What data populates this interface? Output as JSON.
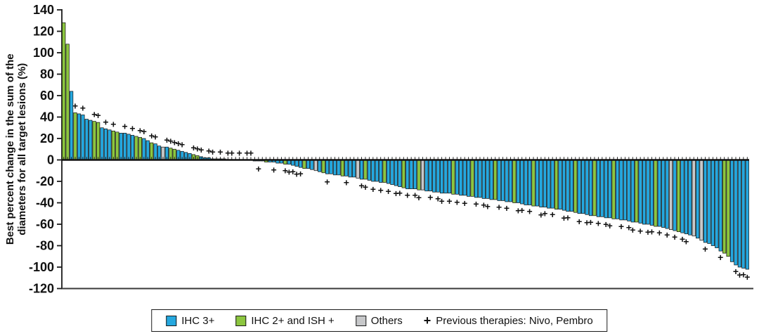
{
  "chart_data": {
    "type": "bar",
    "subtype": "waterfall",
    "title": "",
    "xlabel": "",
    "ylabel": "Best percent change in the sum of the diameters for all target lesions (%)",
    "ylabel_lines": [
      "Best percent change in the sum of the",
      "diameters for all target lesions (%)"
    ],
    "ylim": [
      -120,
      140
    ],
    "ytick_interval": 20,
    "yticks": [
      140,
      120,
      100,
      80,
      60,
      40,
      20,
      0,
      -20,
      -40,
      -60,
      -80,
      -100,
      -120
    ],
    "grid": "off",
    "legend_position": "bottom",
    "legend": [
      {
        "type": "swatch",
        "label": "IHC 3+",
        "color": "#25A8DF"
      },
      {
        "type": "swatch",
        "label": "IHC 2+ and ISH +",
        "color": "#8CC63F"
      },
      {
        "type": "swatch",
        "label": "Others",
        "color": "#C7C8CA"
      },
      {
        "type": "marker",
        "label": "Previous therapies: Nivo, Pembro",
        "marker": "+"
      }
    ],
    "color_key": {
      "b": "#25A8DF",
      "g": "#8CC63F",
      "x": "#C7C8CA"
    },
    "marker_meaning": "Previous therapies: Nivo, Pembro",
    "bar_format": "[best_percent_change, color_code(b=IHC3+,g=IHC2+/ISH+,x=Others), prev_therapy_plus_flag]",
    "bars": [
      [
        128,
        "g",
        0
      ],
      [
        108,
        "g",
        0
      ],
      [
        64,
        "b",
        0
      ],
      [
        44,
        "g",
        1
      ],
      [
        43,
        "b",
        0
      ],
      [
        42,
        "b",
        1
      ],
      [
        38,
        "b",
        0
      ],
      [
        37,
        "b",
        0
      ],
      [
        36,
        "g",
        1
      ],
      [
        35,
        "g",
        1
      ],
      [
        30,
        "b",
        0
      ],
      [
        29,
        "b",
        1
      ],
      [
        28,
        "b",
        0
      ],
      [
        27,
        "g",
        1
      ],
      [
        26,
        "g",
        0
      ],
      [
        25,
        "b",
        0
      ],
      [
        25,
        "b",
        1
      ],
      [
        24,
        "b",
        0
      ],
      [
        23,
        "b",
        1
      ],
      [
        22,
        "g",
        0
      ],
      [
        21,
        "g",
        1
      ],
      [
        20,
        "b",
        1
      ],
      [
        18,
        "b",
        0
      ],
      [
        16,
        "g",
        1
      ],
      [
        15,
        "b",
        1
      ],
      [
        13,
        "b",
        0
      ],
      [
        12,
        "x",
        0
      ],
      [
        12,
        "b",
        1
      ],
      [
        11,
        "g",
        1
      ],
      [
        10,
        "g",
        1
      ],
      [
        9,
        "b",
        1
      ],
      [
        8,
        "b",
        1
      ],
      [
        7,
        "b",
        0
      ],
      [
        6,
        "b",
        0
      ],
      [
        5,
        "g",
        1
      ],
      [
        4,
        "g",
        1
      ],
      [
        3,
        "b",
        1
      ],
      [
        2,
        "b",
        0
      ],
      [
        2,
        "b",
        1
      ],
      [
        1,
        "b",
        1
      ],
      [
        1,
        "g",
        0
      ],
      [
        1,
        "b",
        1
      ],
      [
        1,
        "x",
        0
      ],
      [
        0,
        "g",
        1
      ],
      [
        0,
        "g",
        1
      ],
      [
        0,
        "b",
        0
      ],
      [
        0,
        "b",
        1
      ],
      [
        0,
        "b",
        0
      ],
      [
        0,
        "b",
        1
      ],
      [
        0,
        "b",
        1
      ],
      [
        -1,
        "b",
        0
      ],
      [
        -1,
        "b",
        1
      ],
      [
        -1,
        "b",
        0
      ],
      [
        -2,
        "g",
        0
      ],
      [
        -2,
        "b",
        0
      ],
      [
        -2,
        "b",
        1
      ],
      [
        -3,
        "b",
        0
      ],
      [
        -3,
        "b",
        0
      ],
      [
        -4,
        "g",
        1
      ],
      [
        -4,
        "b",
        1
      ],
      [
        -5,
        "b",
        1
      ],
      [
        -6,
        "b",
        1
      ],
      [
        -7,
        "b",
        1
      ],
      [
        -8,
        "g",
        0
      ],
      [
        -8,
        "b",
        0
      ],
      [
        -9,
        "b",
        0
      ],
      [
        -10,
        "x",
        0
      ],
      [
        -11,
        "b",
        0
      ],
      [
        -12,
        "g",
        0
      ],
      [
        -13,
        "b",
        1
      ],
      [
        -13,
        "b",
        0
      ],
      [
        -14,
        "b",
        0
      ],
      [
        -14,
        "b",
        0
      ],
      [
        -15,
        "g",
        0
      ],
      [
        -15,
        "b",
        1
      ],
      [
        -16,
        "b",
        0
      ],
      [
        -16,
        "b",
        0
      ],
      [
        -17,
        "x",
        0
      ],
      [
        -18,
        "b",
        1
      ],
      [
        -18,
        "g",
        1
      ],
      [
        -19,
        "b",
        0
      ],
      [
        -20,
        "b",
        1
      ],
      [
        -20,
        "b",
        0
      ],
      [
        -21,
        "b",
        1
      ],
      [
        -21,
        "g",
        0
      ],
      [
        -22,
        "b",
        1
      ],
      [
        -23,
        "b",
        0
      ],
      [
        -24,
        "b",
        1
      ],
      [
        -25,
        "b",
        1
      ],
      [
        -26,
        "g",
        0
      ],
      [
        -27,
        "b",
        1
      ],
      [
        -27,
        "b",
        0
      ],
      [
        -27,
        "b",
        1
      ],
      [
        -28,
        "g",
        1
      ],
      [
        -28,
        "x",
        0
      ],
      [
        -29,
        "b",
        0
      ],
      [
        -29,
        "b",
        1
      ],
      [
        -30,
        "b",
        0
      ],
      [
        -30,
        "b",
        1
      ],
      [
        -31,
        "b",
        1
      ],
      [
        -31,
        "b",
        0
      ],
      [
        -31,
        "b",
        1
      ],
      [
        -32,
        "g",
        0
      ],
      [
        -32,
        "b",
        1
      ],
      [
        -33,
        "b",
        0
      ],
      [
        -33,
        "b",
        1
      ],
      [
        -34,
        "b",
        0
      ],
      [
        -34,
        "g",
        0
      ],
      [
        -35,
        "b",
        1
      ],
      [
        -35,
        "b",
        0
      ],
      [
        -36,
        "b",
        1
      ],
      [
        -36,
        "b",
        1
      ],
      [
        -37,
        "b",
        0
      ],
      [
        -37,
        "g",
        0
      ],
      [
        -38,
        "b",
        1
      ],
      [
        -38,
        "b",
        0
      ],
      [
        -39,
        "b",
        1
      ],
      [
        -39,
        "b",
        0
      ],
      [
        -40,
        "g",
        0
      ],
      [
        -40,
        "b",
        1
      ],
      [
        -41,
        "b",
        1
      ],
      [
        -42,
        "b",
        0
      ],
      [
        -42,
        "b",
        1
      ],
      [
        -43,
        "g",
        0
      ],
      [
        -43,
        "b",
        0
      ],
      [
        -44,
        "b",
        1
      ],
      [
        -44,
        "b",
        1
      ],
      [
        -45,
        "b",
        0
      ],
      [
        -45,
        "b",
        1
      ],
      [
        -46,
        "g",
        0
      ],
      [
        -46,
        "b",
        0
      ],
      [
        -47,
        "b",
        1
      ],
      [
        -48,
        "b",
        1
      ],
      [
        -48,
        "b",
        0
      ],
      [
        -49,
        "g",
        0
      ],
      [
        -50,
        "b",
        1
      ],
      [
        -50,
        "b",
        0
      ],
      [
        -51,
        "b",
        1
      ],
      [
        -52,
        "b",
        1
      ],
      [
        -52,
        "g",
        0
      ],
      [
        -53,
        "b",
        1
      ],
      [
        -53,
        "b",
        0
      ],
      [
        -54,
        "b",
        1
      ],
      [
        -54,
        "b",
        1
      ],
      [
        -55,
        "g",
        0
      ],
      [
        -55,
        "b",
        0
      ],
      [
        -56,
        "b",
        1
      ],
      [
        -56,
        "b",
        0
      ],
      [
        -57,
        "b",
        1
      ],
      [
        -58,
        "b",
        1
      ],
      [
        -58,
        "g",
        0
      ],
      [
        -59,
        "b",
        1
      ],
      [
        -60,
        "b",
        0
      ],
      [
        -60,
        "b",
        1
      ],
      [
        -61,
        "b",
        1
      ],
      [
        -62,
        "g",
        0
      ],
      [
        -62,
        "b",
        1
      ],
      [
        -63,
        "b",
        0
      ],
      [
        -64,
        "b",
        1
      ],
      [
        -65,
        "x",
        0
      ],
      [
        -66,
        "b",
        1
      ],
      [
        -67,
        "g",
        0
      ],
      [
        -68,
        "b",
        1
      ],
      [
        -69,
        "b",
        1
      ],
      [
        -70,
        "b",
        0
      ],
      [
        -71,
        "x",
        0
      ],
      [
        -73,
        "b",
        0
      ],
      [
        -75,
        "x",
        0
      ],
      [
        -77,
        "b",
        1
      ],
      [
        -78,
        "b",
        0
      ],
      [
        -80,
        "b",
        0
      ],
      [
        -82,
        "b",
        0
      ],
      [
        -85,
        "b",
        1
      ],
      [
        -87,
        "g",
        0
      ],
      [
        -90,
        "g",
        0
      ],
      [
        -95,
        "b",
        0
      ],
      [
        -98,
        "b",
        1
      ],
      [
        -100,
        "b",
        1
      ],
      [
        -101,
        "b",
        1
      ],
      [
        -102,
        "b",
        1
      ]
    ]
  }
}
